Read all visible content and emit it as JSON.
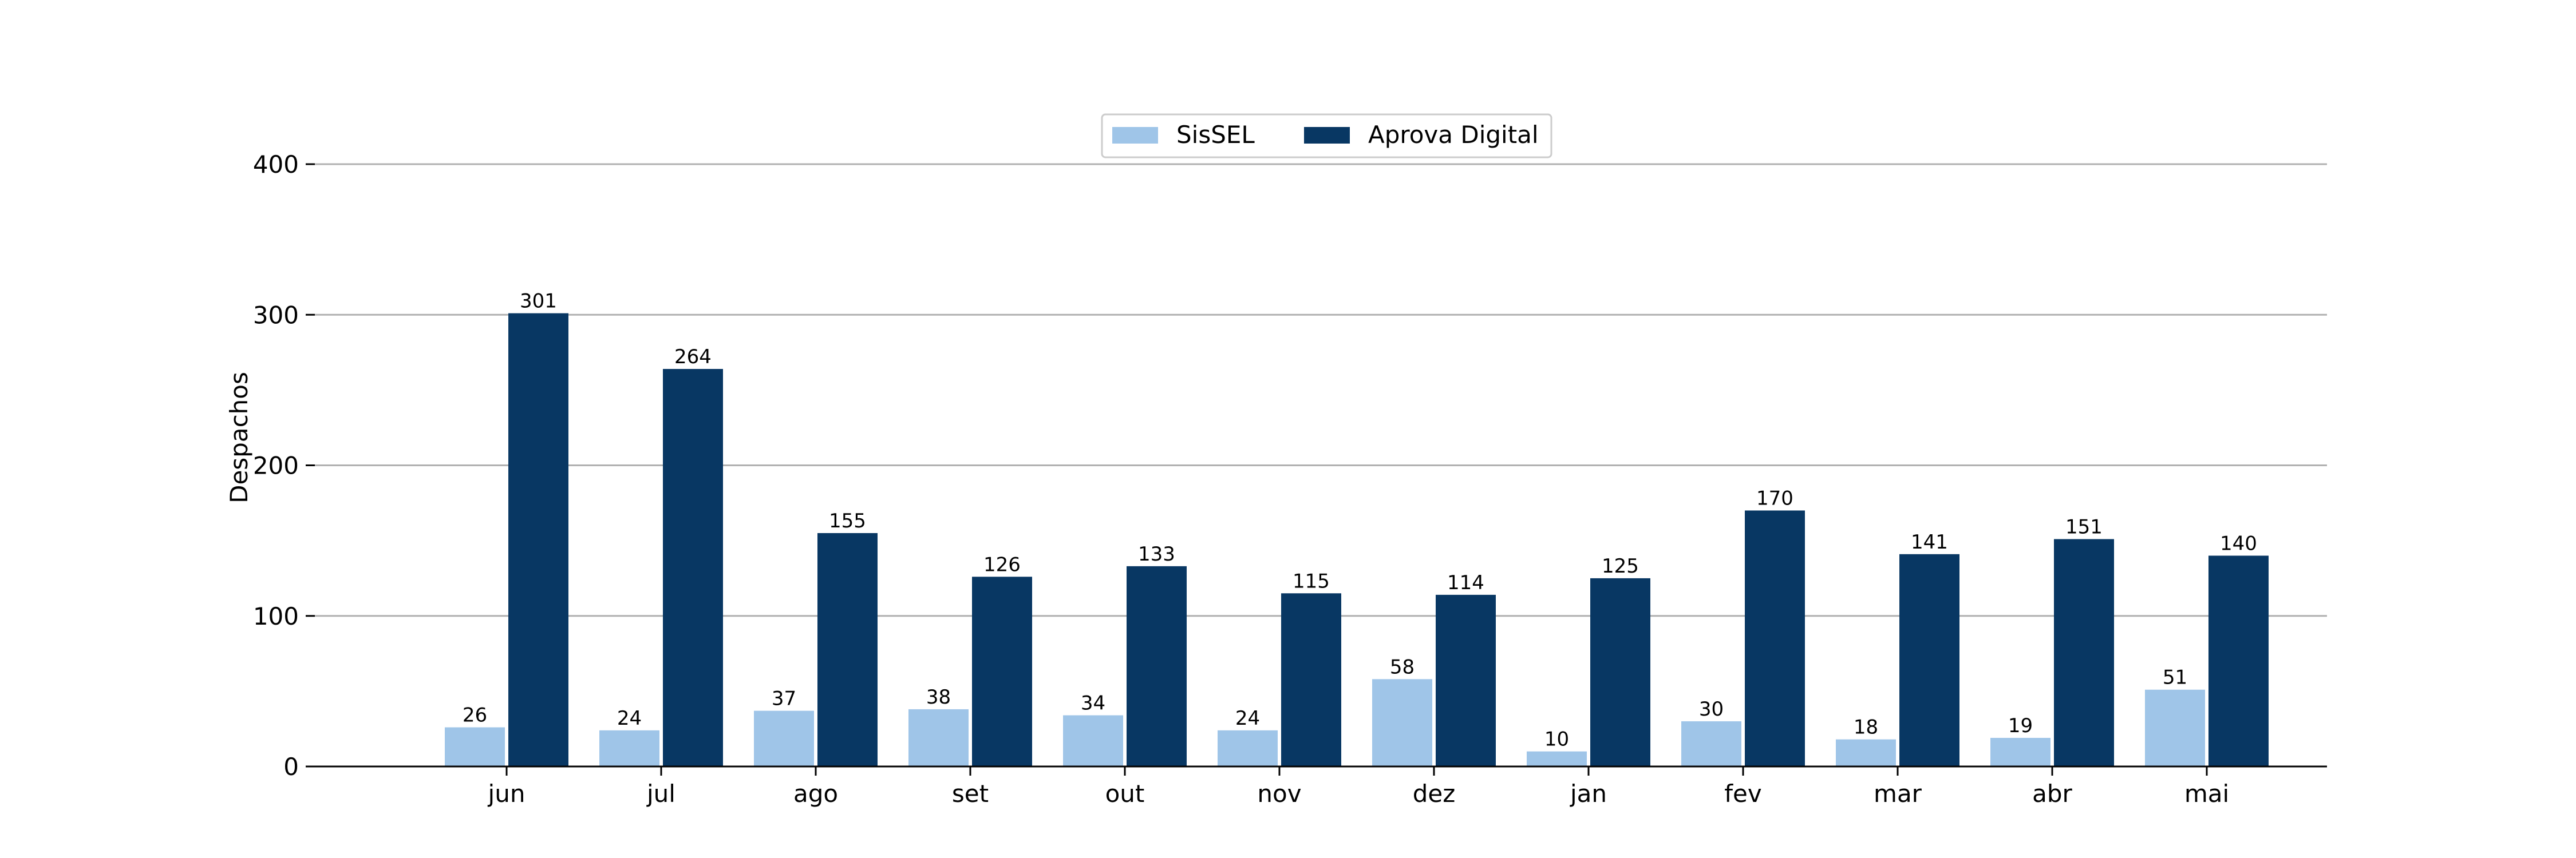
{
  "chart_data": {
    "type": "bar",
    "title": "",
    "xlabel": "",
    "ylabel": "Despachos",
    "ylim": [
      0,
      400
    ],
    "yticks": [
      0,
      100,
      200,
      300,
      400
    ],
    "grid": "horizontal",
    "legend_position": "top-center",
    "categories": [
      "jun",
      "jul",
      "ago",
      "set",
      "out",
      "nov",
      "dez",
      "jan",
      "fev",
      "mar",
      "abr",
      "mai"
    ],
    "series": [
      {
        "name": "SisSEL",
        "color": "#9fc5e8",
        "values": [
          26,
          24,
          37,
          38,
          34,
          24,
          58,
          10,
          30,
          18,
          19,
          51
        ]
      },
      {
        "name": "Aprova Digital",
        "color": "#083763",
        "values": [
          301,
          264,
          155,
          126,
          133,
          115,
          114,
          125,
          170,
          141,
          151,
          140
        ]
      }
    ]
  }
}
